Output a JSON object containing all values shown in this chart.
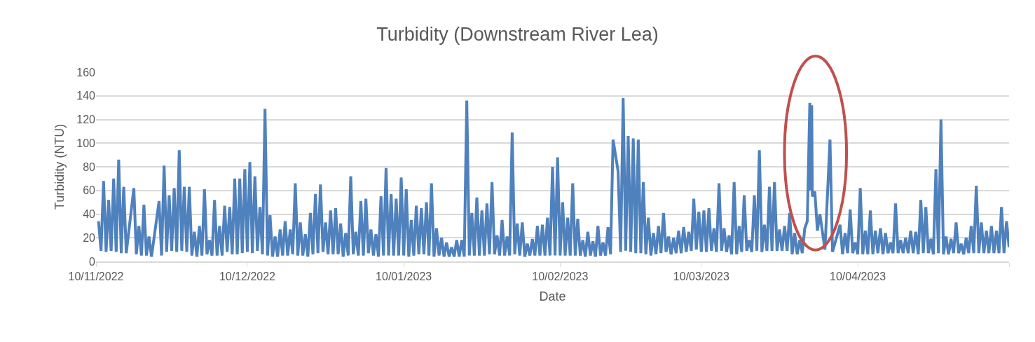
{
  "chart_data": {
    "type": "line",
    "title": "Turbidity (Downstream River Lea)",
    "xlabel": "Date",
    "ylabel": "Turbidity (NTU)",
    "xlim": [
      "2022-11-10",
      "2023-05-10"
    ],
    "xticks": [
      {
        "value": "2022-11-10",
        "label": "10/11/2022"
      },
      {
        "value": "2022-12-10",
        "label": "10/12/2022"
      },
      {
        "value": "2023-01-10",
        "label": "10/01/2023"
      },
      {
        "value": "2023-02-10",
        "label": "10/02/2023"
      },
      {
        "value": "2023-03-10",
        "label": "10/03/2023"
      },
      {
        "value": "2023-04-10",
        "label": "10/04/2023"
      },
      {
        "value": "2023-05-10",
        "label": null
      }
    ],
    "ylim": [
      0,
      160
    ],
    "yticks": [
      0,
      20,
      40,
      60,
      80,
      100,
      120,
      140,
      160
    ],
    "grid": "y",
    "marker": "none",
    "line_style": "solid",
    "series": [
      {
        "color": "#4f81bd",
        "x": [
          "2022-11-10T12:00",
          "2022-11-11T00:00",
          "2022-11-11T12:00",
          "2022-11-12T00:00",
          "2022-11-12T12:00",
          "2022-11-13T00:00",
          "2022-11-13T12:00",
          "2022-11-14T00:00",
          "2022-11-14T12:00",
          "2022-11-15T00:00",
          "2022-11-15T12:00",
          "2022-11-16T00:00",
          "2022-11-17T12:00",
          "2022-11-18T00:00",
          "2022-11-18T12:00",
          "2022-11-19T00:00",
          "2022-11-19T12:00",
          "2022-11-20T00:00",
          "2022-11-20T12:00",
          "2022-11-21T00:00",
          "2022-11-22T12:00",
          "2022-11-23T00:00",
          "2022-11-23T12:00",
          "2022-11-24T00:00",
          "2022-11-24T12:00",
          "2022-11-25T00:00",
          "2022-11-25T12:00",
          "2022-11-26T00:00",
          "2022-11-26T12:00",
          "2022-11-27T00:00",
          "2022-11-27T12:00",
          "2022-11-28T00:00",
          "2022-11-28T12:00",
          "2022-11-29T00:00",
          "2022-11-29T12:00",
          "2022-11-30T00:00",
          "2022-11-30T12:00",
          "2022-12-01T00:00",
          "2022-12-01T12:00",
          "2022-12-02T00:00",
          "2022-12-02T12:00",
          "2022-12-03T00:00",
          "2022-12-03T12:00",
          "2022-12-04T00:00",
          "2022-12-04T12:00",
          "2022-12-05T00:00",
          "2022-12-05T12:00",
          "2022-12-06T00:00",
          "2022-12-06T12:00",
          "2022-12-07T00:00",
          "2022-12-07T12:00",
          "2022-12-08T00:00",
          "2022-12-08T12:00",
          "2022-12-09T00:00",
          "2022-12-09T12:00",
          "2022-12-10T00:00",
          "2022-12-10T12:00",
          "2022-12-11T00:00",
          "2022-12-11T12:00",
          "2022-12-12T00:00",
          "2022-12-12T12:00",
          "2022-12-13T00:00",
          "2022-12-13T12:00",
          "2022-12-14T00:00",
          "2022-12-14T12:00",
          "2022-12-15T00:00",
          "2022-12-15T12:00",
          "2022-12-16T00:00",
          "2022-12-16T12:00",
          "2022-12-17T00:00",
          "2022-12-17T12:00",
          "2022-12-18T00:00",
          "2022-12-18T12:00",
          "2022-12-19T00:00",
          "2022-12-19T12:00",
          "2022-12-20T00:00",
          "2022-12-20T12:00",
          "2022-12-21T00:00",
          "2022-12-21T12:00",
          "2022-12-22T00:00",
          "2022-12-22T12:00",
          "2022-12-23T00:00",
          "2022-12-23T12:00",
          "2022-12-24T00:00",
          "2022-12-24T12:00",
          "2022-12-25T00:00",
          "2022-12-25T12:00",
          "2022-12-26T00:00",
          "2022-12-26T12:00",
          "2022-12-27T00:00",
          "2022-12-27T12:00",
          "2022-12-28T00:00",
          "2022-12-28T12:00",
          "2022-12-29T00:00",
          "2022-12-29T12:00",
          "2022-12-30T00:00",
          "2022-12-30T12:00",
          "2022-12-31T00:00",
          "2022-12-31T12:00",
          "2023-01-01T00:00",
          "2023-01-01T12:00",
          "2023-01-02T00:00",
          "2023-01-02T12:00",
          "2023-01-03T00:00",
          "2023-01-03T12:00",
          "2023-01-04T00:00",
          "2023-01-04T12:00",
          "2023-01-05T00:00",
          "2023-01-05T12:00",
          "2023-01-06T00:00",
          "2023-01-06T12:00",
          "2023-01-07T00:00",
          "2023-01-07T12:00",
          "2023-01-08T00:00",
          "2023-01-08T12:00",
          "2023-01-09T00:00",
          "2023-01-09T12:00",
          "2023-01-10T00:00",
          "2023-01-10T12:00",
          "2023-01-11T00:00",
          "2023-01-11T12:00",
          "2023-01-12T00:00",
          "2023-01-12T12:00",
          "2023-01-13T00:00",
          "2023-01-13T12:00",
          "2023-01-14T00:00",
          "2023-01-14T12:00",
          "2023-01-15T00:00",
          "2023-01-15T12:00",
          "2023-01-16T00:00",
          "2023-01-16T12:00",
          "2023-01-17T00:00",
          "2023-01-17T12:00",
          "2023-01-18T00:00",
          "2023-01-18T12:00",
          "2023-01-19T00:00",
          "2023-01-19T12:00",
          "2023-01-20T00:00",
          "2023-01-20T12:00",
          "2023-01-21T00:00",
          "2023-01-21T12:00",
          "2023-01-22T00:00",
          "2023-01-22T12:00",
          "2023-01-23T00:00",
          "2023-01-23T12:00",
          "2023-01-24T00:00",
          "2023-01-24T12:00",
          "2023-01-25T00:00",
          "2023-01-25T12:00",
          "2023-01-26T00:00",
          "2023-01-26T12:00",
          "2023-01-27T00:00",
          "2023-01-27T12:00",
          "2023-01-28T00:00",
          "2023-01-28T12:00",
          "2023-01-29T00:00",
          "2023-01-29T12:00",
          "2023-01-30T00:00",
          "2023-01-30T12:00",
          "2023-01-31T00:00",
          "2023-01-31T12:00",
          "2023-02-01T00:00",
          "2023-02-01T12:00",
          "2023-02-02T00:00",
          "2023-02-02T12:00",
          "2023-02-03T00:00",
          "2023-02-03T12:00",
          "2023-02-04T00:00",
          "2023-02-04T12:00",
          "2023-02-05T00:00",
          "2023-02-05T12:00",
          "2023-02-06T00:00",
          "2023-02-06T12:00",
          "2023-02-07T00:00",
          "2023-02-07T12:00",
          "2023-02-08T00:00",
          "2023-02-08T12:00",
          "2023-02-09T00:00",
          "2023-02-09T12:00",
          "2023-02-10T00:00",
          "2023-02-10T12:00",
          "2023-02-11T00:00",
          "2023-02-11T12:00",
          "2023-02-12T00:00",
          "2023-02-12T12:00",
          "2023-02-13T00:00",
          "2023-02-13T12:00",
          "2023-02-14T00:00",
          "2023-02-14T12:00",
          "2023-02-15T00:00",
          "2023-02-15T12:00",
          "2023-02-16T00:00",
          "2023-02-16T12:00",
          "2023-02-17T00:00",
          "2023-02-17T12:00",
          "2023-02-18T00:00",
          "2023-02-18T12:00",
          "2023-02-19T00:00",
          "2023-02-19T12:00",
          "2023-02-20T00:00",
          "2023-02-20T12:00",
          "2023-02-21T12:00",
          "2023-02-22T00:00",
          "2023-02-22T12:00",
          "2023-02-23T00:00",
          "2023-02-23T12:00",
          "2023-02-24T00:00",
          "2023-02-24T12:00",
          "2023-02-25T00:00",
          "2023-02-25T12:00",
          "2023-02-26T00:00",
          "2023-02-26T12:00",
          "2023-02-27T00:00",
          "2023-02-27T12:00",
          "2023-02-28T00:00",
          "2023-02-28T12:00",
          "2023-03-01T00:00",
          "2023-03-01T12:00",
          "2023-03-02T00:00",
          "2023-03-02T12:00",
          "2023-03-03T00:00",
          "2023-03-03T12:00",
          "2023-03-04T00:00",
          "2023-03-04T12:00",
          "2023-03-05T00:00",
          "2023-03-05T12:00",
          "2023-03-06T00:00",
          "2023-03-06T12:00",
          "2023-03-07T00:00",
          "2023-03-07T12:00",
          "2023-03-08T00:00",
          "2023-03-08T12:00",
          "2023-03-09T00:00",
          "2023-03-09T12:00",
          "2023-03-10T00:00",
          "2023-03-10T12:00",
          "2023-03-11T00:00",
          "2023-03-11T12:00",
          "2023-03-12T00:00",
          "2023-03-12T12:00",
          "2023-03-13T00:00",
          "2023-03-13T12:00",
          "2023-03-14T00:00",
          "2023-03-14T12:00",
          "2023-03-15T00:00",
          "2023-03-15T12:00",
          "2023-03-16T00:00",
          "2023-03-16T12:00",
          "2023-03-17T00:00",
          "2023-03-17T12:00",
          "2023-03-18T00:00",
          "2023-03-18T12:00",
          "2023-03-19T00:00",
          "2023-03-19T12:00",
          "2023-03-20T00:00",
          "2023-03-20T12:00",
          "2023-03-21T00:00",
          "2023-03-21T12:00",
          "2023-03-22T00:00",
          "2023-03-22T12:00",
          "2023-03-23T00:00",
          "2023-03-23T12:00",
          "2023-03-24T00:00",
          "2023-03-24T12:00",
          "2023-03-25T00:00",
          "2023-03-25T12:00",
          "2023-03-26T00:00",
          "2023-03-26T12:00",
          "2023-03-27T00:00",
          "2023-03-27T12:00",
          "2023-03-28T00:00",
          "2023-03-28T12:00",
          "2023-03-29T00:00",
          "2023-03-29T12:00",
          "2023-03-30T00:00",
          "2023-03-30T12:00",
          "2023-03-31T00:00",
          "2023-03-31T12:00",
          "2023-03-31T15:00",
          "2023-03-31T18:00",
          "2023-03-31T21:00",
          "2023-04-01T00:00",
          "2023-04-01T12:00",
          "2023-04-02T00:00",
          "2023-04-02T12:00",
          "2023-04-03T00:00",
          "2023-04-03T12:00",
          "2023-04-04T12:00",
          "2023-04-05T00:00",
          "2023-04-06T12:00",
          "2023-04-07T00:00",
          "2023-04-07T12:00",
          "2023-04-08T00:00",
          "2023-04-08T12:00",
          "2023-04-09T00:00",
          "2023-04-09T12:00",
          "2023-04-10T00:00",
          "2023-04-10T12:00",
          "2023-04-11T00:00",
          "2023-04-11T12:00",
          "2023-04-12T00:00",
          "2023-04-12T12:00",
          "2023-04-13T00:00",
          "2023-04-13T12:00",
          "2023-04-14T00:00",
          "2023-04-14T12:00",
          "2023-04-15T00:00",
          "2023-04-15T12:00",
          "2023-04-16T00:00",
          "2023-04-16T12:00",
          "2023-04-17T00:00",
          "2023-04-17T12:00",
          "2023-04-18T00:00",
          "2023-04-18T12:00",
          "2023-04-19T00:00",
          "2023-04-19T12:00",
          "2023-04-20T00:00",
          "2023-04-20T12:00",
          "2023-04-21T00:00",
          "2023-04-21T12:00",
          "2023-04-22T00:00",
          "2023-04-22T12:00",
          "2023-04-23T00:00",
          "2023-04-23T12:00",
          "2023-04-24T00:00",
          "2023-04-24T12:00",
          "2023-04-25T00:00",
          "2023-04-25T12:00",
          "2023-04-26T00:00",
          "2023-04-26T12:00",
          "2023-04-27T00:00",
          "2023-04-27T12:00",
          "2023-04-28T00:00",
          "2023-04-28T12:00",
          "2023-04-29T00:00",
          "2023-04-29T12:00",
          "2023-04-30T00:00",
          "2023-04-30T12:00",
          "2023-05-01T00:00",
          "2023-05-01T12:00",
          "2023-05-02T00:00",
          "2023-05-02T12:00",
          "2023-05-03T00:00",
          "2023-05-03T12:00",
          "2023-05-04T00:00",
          "2023-05-04T12:00",
          "2023-05-05T00:00",
          "2023-05-05T12:00",
          "2023-05-06T00:00",
          "2023-05-06T12:00",
          "2023-05-07T00:00",
          "2023-05-07T12:00",
          "2023-05-08T00:00",
          "2023-05-08T12:00",
          "2023-05-09T00:00",
          "2023-05-09T12:00",
          "2023-05-10T00:00"
        ],
        "values": [
          34,
          9,
          68,
          8,
          52,
          9,
          70,
          8,
          86,
          7,
          63,
          7,
          62,
          6,
          30,
          5,
          48,
          5,
          21,
          4,
          51,
          5,
          81,
          8,
          56,
          9,
          62,
          8,
          94,
          9,
          63,
          8,
          63,
          5,
          25,
          4,
          30,
          5,
          61,
          6,
          18,
          5,
          52,
          5,
          30,
          5,
          47,
          8,
          46,
          6,
          70,
          6,
          70,
          7,
          78,
          8,
          84,
          7,
          72,
          9,
          46,
          6,
          129,
          5,
          39,
          4,
          21,
          4,
          27,
          5,
          34,
          5,
          27,
          6,
          66,
          5,
          33,
          5,
          23,
          4,
          41,
          6,
          57,
          7,
          65,
          8,
          33,
          6,
          43,
          6,
          45,
          6,
          32,
          4,
          24,
          5,
          72,
          6,
          25,
          5,
          51,
          5,
          53,
          7,
          27,
          5,
          23,
          4,
          55,
          5,
          79,
          5,
          57,
          5,
          53,
          5,
          71,
          5,
          61,
          4,
          35,
          5,
          47,
          6,
          45,
          6,
          50,
          5,
          66,
          4,
          28,
          5,
          20,
          4,
          16,
          4,
          12,
          4,
          18,
          4,
          18,
          4,
          136,
          5,
          41,
          5,
          54,
          5,
          43,
          5,
          49,
          6,
          67,
          6,
          22,
          5,
          35,
          5,
          21,
          5,
          109,
          6,
          32,
          5,
          33,
          4,
          15,
          5,
          19,
          5,
          30,
          5,
          31,
          5,
          37,
          5,
          80,
          5,
          88,
          5,
          50,
          5,
          37,
          5,
          66,
          5,
          36,
          5,
          18,
          4,
          25,
          5,
          17,
          4,
          30,
          5,
          16,
          5,
          29,
          6,
          103,
          76,
          8,
          138,
          9,
          106,
          8,
          104,
          7,
          103,
          7,
          67,
          6,
          37,
          5,
          24,
          6,
          30,
          7,
          41,
          8,
          21,
          6,
          20,
          7,
          26,
          7,
          29,
          8,
          25,
          9,
          53,
          10,
          42,
          8,
          43,
          8,
          45,
          9,
          28,
          8,
          66,
          9,
          28,
          8,
          22,
          6,
          67,
          6,
          30,
          8,
          56,
          9,
          18,
          8,
          56,
          9,
          94,
          8,
          31,
          9,
          63,
          9,
          67,
          9,
          27,
          9,
          30,
          9,
          41,
          6,
          24,
          6,
          18,
          7,
          28,
          34,
          134,
          60,
          101,
          132,
          55,
          59,
          26,
          40,
          25,
          10,
          103,
          8,
          31,
          6,
          24,
          7,
          44,
          7,
          16,
          6,
          62,
          6,
          26,
          6,
          43,
          6,
          26,
          7,
          28,
          6,
          24,
          7,
          16,
          7,
          49,
          7,
          18,
          7,
          20,
          7,
          26,
          7,
          25,
          6,
          52,
          7,
          46,
          7,
          19,
          6,
          78,
          7,
          120,
          6,
          21,
          6,
          19,
          7,
          33,
          7,
          15,
          6,
          20,
          7,
          30,
          7,
          64,
          7,
          33,
          7,
          26,
          7,
          30,
          7,
          26,
          7,
          46,
          7,
          34,
          12
        ]
      }
    ]
  }
}
